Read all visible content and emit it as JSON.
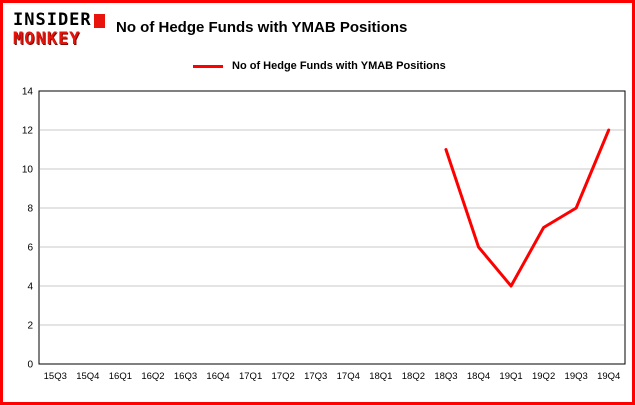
{
  "brand": {
    "line1": "INSIDER",
    "line2": "MONKEY"
  },
  "header": {
    "title": "No of Hedge Funds with YMAB Positions"
  },
  "legend": {
    "label": "No of Hedge Funds with YMAB Positions",
    "color": "#fe0000"
  },
  "chart_data": {
    "type": "line",
    "title": "No of Hedge Funds with YMAB Positions",
    "categories": [
      "15Q3",
      "15Q4",
      "16Q1",
      "16Q2",
      "16Q3",
      "16Q4",
      "17Q1",
      "17Q2",
      "17Q3",
      "17Q4",
      "18Q1",
      "18Q2",
      "18Q3",
      "18Q4",
      "19Q1",
      "19Q2",
      "19Q3",
      "19Q4"
    ],
    "series": [
      {
        "name": "No of Hedge Funds with YMAB Positions",
        "color": "#fe0000",
        "values": [
          null,
          null,
          null,
          null,
          null,
          null,
          null,
          null,
          null,
          null,
          null,
          null,
          11,
          6,
          4,
          7,
          8,
          12
        ]
      }
    ],
    "xlabel": "",
    "ylabel": "",
    "ylim": [
      0,
      14
    ],
    "ytick_step": 2,
    "grid": true,
    "legend_position": "top"
  },
  "colors": {
    "frame_border": "#fe0000",
    "plot_border": "#000000",
    "gridline": "#c9c9c9",
    "axis_text": "#000000",
    "background": "#ffffff"
  }
}
